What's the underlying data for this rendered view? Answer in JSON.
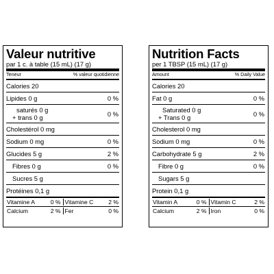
{
  "french": {
    "title": "Valeur nutritive",
    "serving": "par 1 c. à table (15 mL) (17 g)",
    "header_left": "Teneur",
    "header_right": "% valeur quotidienne",
    "calories": "Calories 20",
    "lipides": {
      "label": "Lipides 0 g",
      "pct": "0 %"
    },
    "satures": {
      "line1": "saturés 0 g",
      "line2": "+ trans 0 g",
      "pct": "0 %"
    },
    "cholesterol": "Cholestérol 0 mg",
    "sodium": {
      "label": "Sodium 0 mg",
      "pct": "0 %"
    },
    "glucides": {
      "label": "Glucides 5 g",
      "pct": "2 %"
    },
    "fibres": {
      "label": "Fibres 0 g",
      "pct": "0 %"
    },
    "sucres": "Sucres 5 g",
    "proteines": "Protéines 0,1 g",
    "vit_a": {
      "label": "Vitamine A",
      "pct": "0 %"
    },
    "vit_c": {
      "label": "Vitamine C",
      "pct": "2 %"
    },
    "calcium": {
      "label": "Calcium",
      "pct": "2 %"
    },
    "iron": {
      "label": "Fer",
      "pct": "0 %"
    }
  },
  "english": {
    "title": "Nutrition Facts",
    "serving": "per 1 TBSP (15 mL) (17 g)",
    "header_left": "Amount",
    "header_right": "% Daily Value",
    "calories": "Calories 20",
    "fat": {
      "label": "Fat 0 g",
      "pct": "0 %"
    },
    "saturated": {
      "line1": "Saturated 0 g",
      "line2": "+ Trans 0 g",
      "pct": "0 %"
    },
    "cholesterol": "Cholesterol 0 mg",
    "sodium": {
      "label": "Sodium 0 mg",
      "pct": "0 %"
    },
    "carbohydrate": {
      "label": "Carbohydrate 5 g",
      "pct": "2 %"
    },
    "fibre": {
      "label": "Fibre 0 g",
      "pct": "0 %"
    },
    "sugars": "Sugars 5 g",
    "protein": "Protein 0,1 g",
    "vit_a": {
      "label": "Vitamin A",
      "pct": "0 %"
    },
    "vit_c": {
      "label": "Vitamin C",
      "pct": "2 %"
    },
    "calcium": {
      "label": "Calcium",
      "pct": "2 %"
    },
    "iron": {
      "label": "Iron",
      "pct": "0 %"
    }
  }
}
